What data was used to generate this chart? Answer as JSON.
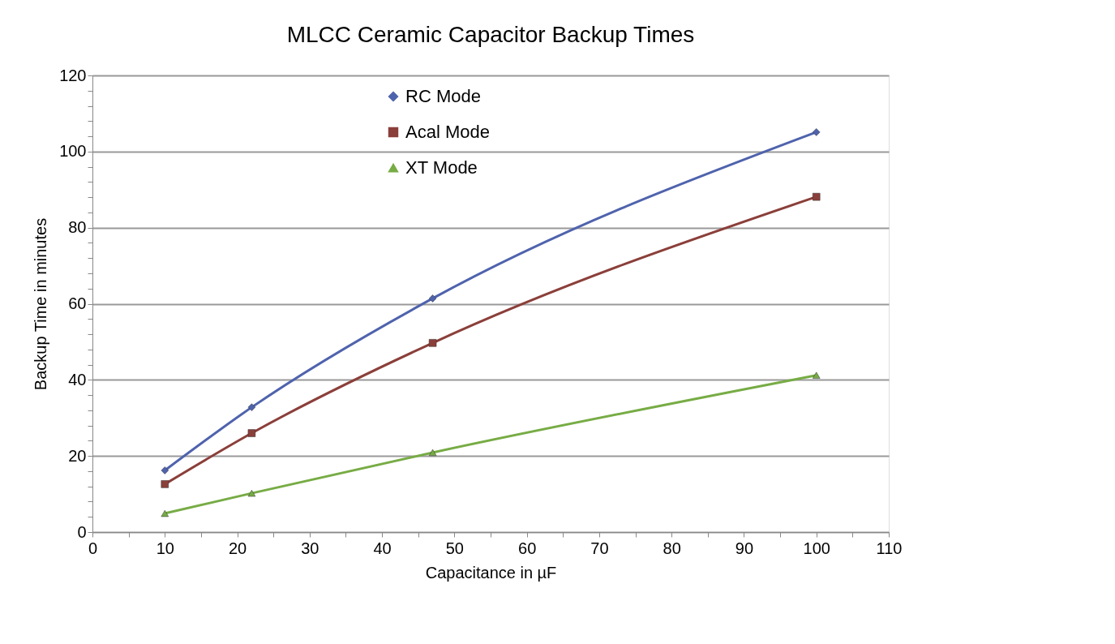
{
  "chart_data": {
    "type": "line",
    "title": "MLCC Ceramic Capacitor Backup Times",
    "xlabel": "Capacitance in µF",
    "ylabel": "Backup Time in minutes",
    "x": [
      10,
      22,
      47,
      100
    ],
    "series": [
      {
        "name": "RC Mode",
        "color": "#4f63ad",
        "marker": "diamond",
        "values": [
          16.2,
          32.8,
          61.4,
          105.1
        ]
      },
      {
        "name": "Acal Mode",
        "color": "#8b3f3a",
        "marker": "square",
        "values": [
          12.6,
          26.0,
          49.7,
          88.1
        ]
      },
      {
        "name": "XT Mode",
        "color": "#77ac45",
        "marker": "triangle",
        "values": [
          4.9,
          10.2,
          20.9,
          41.2
        ]
      }
    ],
    "xlim": [
      0,
      110
    ],
    "xticks": [
      0,
      {
        "value": 5,
        "label": null
      },
      10,
      {
        "value": 15,
        "label": null
      },
      20,
      {
        "value": 25,
        "label": null
      },
      30,
      {
        "value": 35,
        "label": null
      },
      40,
      {
        "value": 45,
        "label": null
      },
      50,
      {
        "value": 55,
        "label": null
      },
      60,
      {
        "value": 65,
        "label": null
      },
      70,
      {
        "value": 75,
        "label": null
      },
      80,
      {
        "value": 85,
        "label": null
      },
      90,
      {
        "value": 95,
        "label": null
      },
      100,
      {
        "value": 105,
        "label": null
      },
      110
    ],
    "ylim": [
      0,
      120
    ],
    "yticks": [
      0,
      {
        "value": 4,
        "label": null
      },
      {
        "value": 8,
        "label": null
      },
      {
        "value": 12,
        "label": null
      },
      {
        "value": 16,
        "label": null
      },
      20,
      {
        "value": 24,
        "label": null
      },
      {
        "value": 28,
        "label": null
      },
      {
        "value": 32,
        "label": null
      },
      {
        "value": 36,
        "label": null
      },
      40,
      {
        "value": 44,
        "label": null
      },
      {
        "value": 48,
        "label": null
      },
      {
        "value": 52,
        "label": null
      },
      {
        "value": 56,
        "label": null
      },
      60,
      {
        "value": 64,
        "label": null
      },
      {
        "value": 68,
        "label": null
      },
      {
        "value": 72,
        "label": null
      },
      {
        "value": 76,
        "label": null
      },
      80,
      {
        "value": 84,
        "label": null
      },
      {
        "value": 88,
        "label": null
      },
      {
        "value": 92,
        "label": null
      },
      {
        "value": 96,
        "label": null
      },
      100,
      {
        "value": 104,
        "label": null
      },
      {
        "value": 108,
        "label": null
      },
      {
        "value": 112,
        "label": null
      },
      {
        "value": 116,
        "label": null
      },
      120
    ],
    "grid": "y",
    "legend": "top",
    "line_style": "solid"
  }
}
